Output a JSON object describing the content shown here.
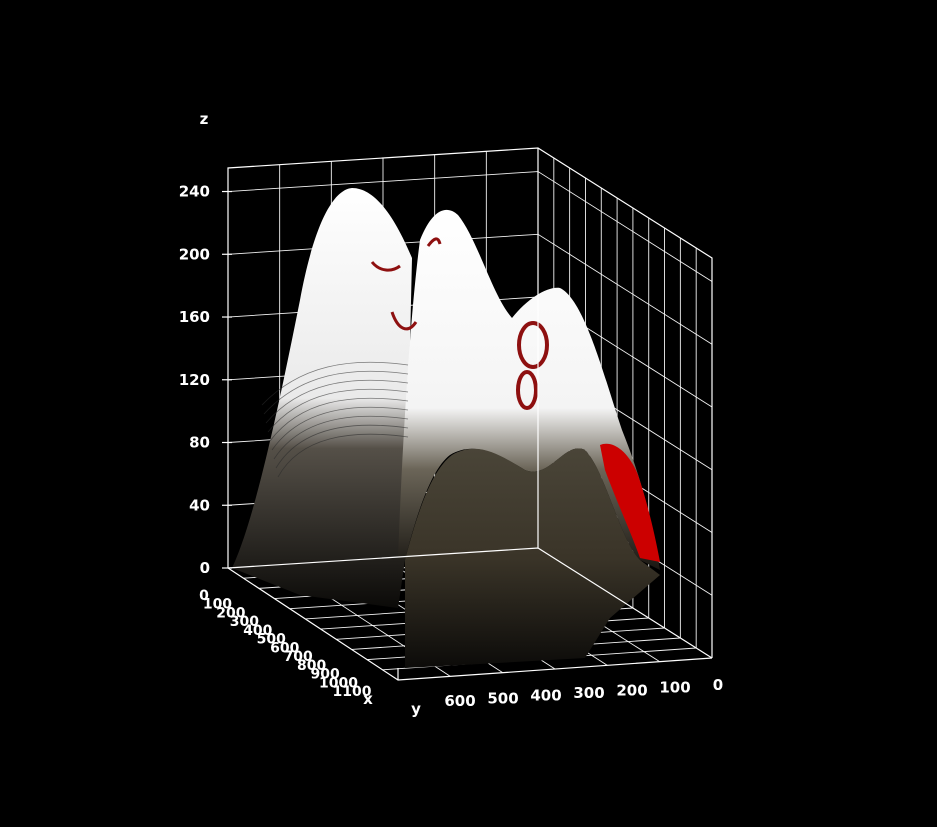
{
  "chart_data": {
    "type": "surface",
    "title": "",
    "xlabel": "x",
    "ylabel": "y",
    "zlabel": "z",
    "z_ticks": [
      "0",
      "40",
      "80",
      "120",
      "160",
      "200",
      "240"
    ],
    "y_ticks": [
      "600",
      "500",
      "400",
      "300",
      "200",
      "100",
      "0"
    ],
    "x_ticks": [
      "0",
      "100",
      "200",
      "300",
      "400",
      "500",
      "600",
      "700",
      "800",
      "900",
      "1000",
      "1100"
    ],
    "zlim": [
      0,
      255
    ],
    "ylim": [
      0,
      650
    ],
    "xlim": [
      0,
      1150
    ],
    "grid": true,
    "background": "#000000",
    "colors": {
      "surface_high": "#ffffff",
      "surface_low": "#2a2620",
      "accent": "#cc0000"
    },
    "peaks": [
      {
        "y": 600,
        "z": 235
      },
      {
        "y": 400,
        "z": 230
      },
      {
        "y": 150,
        "z": 185
      }
    ]
  }
}
